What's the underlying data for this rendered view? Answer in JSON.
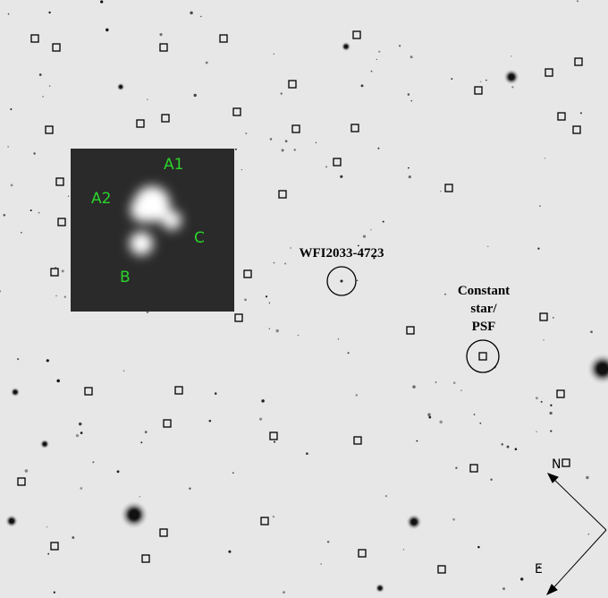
{
  "labels": {
    "image_components": [
      "A1",
      "A2",
      "B",
      "C"
    ],
    "target": "WFI2033-4723",
    "reference": [
      "Constant",
      "star/",
      "PSF"
    ],
    "compass": [
      "N",
      "E"
    ]
  }
}
